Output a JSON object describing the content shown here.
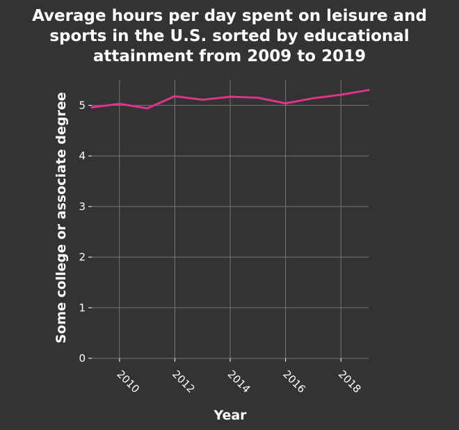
{
  "chart_data": {
    "type": "line",
    "title_lines": [
      "Average hours per day spent on leisure and",
      "sports in the U.S. sorted by educational",
      "attainment from 2009 to 2019"
    ],
    "xlabel": "Year",
    "ylabel": "Some college or associate degree",
    "xlim": [
      2009,
      2019
    ],
    "ylim": [
      0,
      5.5
    ],
    "xticks": [
      2010,
      2012,
      2014,
      2016,
      2018
    ],
    "yticks": [
      0,
      1,
      2,
      3,
      4,
      5
    ],
    "grid": true,
    "line_color": "#e0338a",
    "series": [
      {
        "x": [
          2009,
          2010,
          2011,
          2012,
          2013,
          2014,
          2015,
          2016,
          2017,
          2018,
          2019
        ],
        "values": [
          4.96,
          5.03,
          4.94,
          5.18,
          5.11,
          5.17,
          5.15,
          5.04,
          5.14,
          5.21,
          5.3
        ]
      }
    ]
  }
}
